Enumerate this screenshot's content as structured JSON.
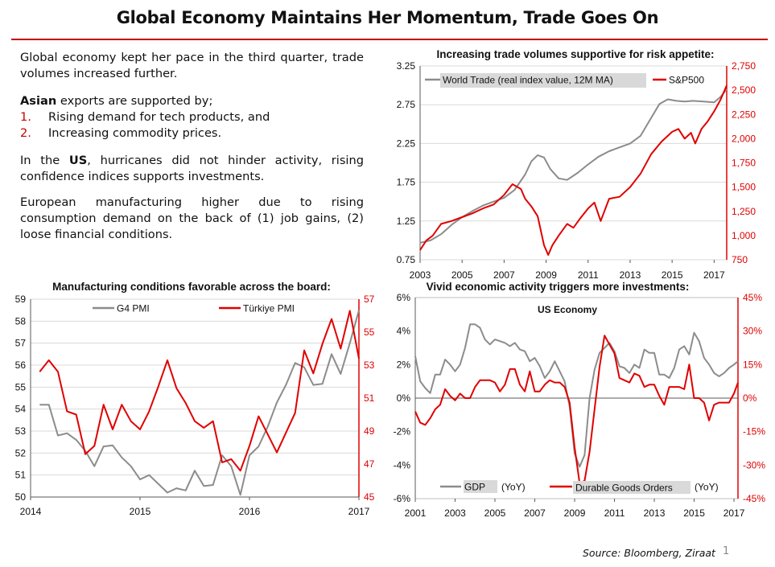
{
  "page": {
    "title": "Global Economy Maintains Her Momentum, Trade Goes On",
    "p1": "Global economy kept her pace in the third quarter, trade volumes increased further.",
    "p2_bold": "Asian",
    "p2_rest": " exports are supported by;",
    "list": [
      {
        "num": "1.",
        "text": "Rising demand for tech products, and"
      },
      {
        "num": "2.",
        "text": "Increasing commodity prices."
      }
    ],
    "p3_pre": "In the ",
    "p3_bold": "US",
    "p3_post": ", hurricanes did not hinder activity, rising confidence indices supports investments.",
    "p4": "European manufacturing higher due to rising consumption demand on the back of (1) job gains, (2) loose financial conditions.",
    "source": "Source: Bloomberg, Ziraat",
    "page_number": "1"
  },
  "colors": {
    "accent": "#c00000",
    "red_series": "#e00000",
    "gray_series": "#8c8c8c"
  },
  "chart_data": [
    {
      "id": "trade",
      "type": "line",
      "title": "Increasing trade volumes supportive for risk appetite:",
      "x_ticks": [
        "2003",
        "2005",
        "2007",
        "2009",
        "2011",
        "2013",
        "2015",
        "2017"
      ],
      "xlim": [
        2003,
        2017.6
      ],
      "y_left": {
        "lim": [
          0.75,
          3.25
        ],
        "ticks": [
          "0.75",
          "1.25",
          "1.75",
          "2.25",
          "2.75",
          "3.25"
        ]
      },
      "y_right": {
        "lim": [
          750,
          2750
        ],
        "ticks": [
          "750",
          "1,000",
          "1,250",
          "1,500",
          "1,750",
          "2,000",
          "2,250",
          "2,500",
          "2,750"
        ]
      },
      "series": [
        {
          "name": "World Trade (real index value, 12M MA)",
          "axis": "left",
          "color": "#8c8c8c",
          "x": [
            2003,
            2003.5,
            2004,
            2004.5,
            2005,
            2005.5,
            2006,
            2006.5,
            2007,
            2007.5,
            2008,
            2008.3,
            2008.6,
            2008.9,
            2009.2,
            2009.6,
            2010,
            2010.5,
            2011,
            2011.5,
            2012,
            2012.5,
            2013,
            2013.5,
            2014,
            2014.4,
            2014.8,
            2015.2,
            2015.6,
            2016,
            2016.5,
            2017,
            2017.3,
            2017.6
          ],
          "y": [
            0.97,
            1.0,
            1.08,
            1.2,
            1.3,
            1.38,
            1.45,
            1.5,
            1.55,
            1.65,
            1.85,
            2.02,
            2.1,
            2.07,
            1.92,
            1.8,
            1.78,
            1.87,
            1.98,
            2.08,
            2.15,
            2.2,
            2.25,
            2.35,
            2.58,
            2.76,
            2.82,
            2.8,
            2.79,
            2.8,
            2.79,
            2.78,
            2.85,
            2.95
          ]
        },
        {
          "name": "S&P500",
          "axis": "right",
          "color": "#e00000",
          "x": [
            2003,
            2003.3,
            2003.6,
            2004,
            2004.5,
            2005,
            2005.5,
            2006,
            2006.5,
            2007,
            2007.4,
            2007.8,
            2008,
            2008.3,
            2008.6,
            2008.9,
            2009.1,
            2009.3,
            2009.6,
            2010,
            2010.3,
            2010.6,
            2011,
            2011.3,
            2011.6,
            2012,
            2012.5,
            2013,
            2013.5,
            2014,
            2014.5,
            2015,
            2015.3,
            2015.6,
            2015.9,
            2016.1,
            2016.4,
            2016.7,
            2017,
            2017.3,
            2017.6
          ],
          "y": [
            850,
            950,
            1000,
            1120,
            1150,
            1190,
            1230,
            1280,
            1320,
            1420,
            1530,
            1480,
            1380,
            1300,
            1200,
            900,
            800,
            900,
            1000,
            1120,
            1080,
            1170,
            1280,
            1340,
            1150,
            1380,
            1400,
            1500,
            1640,
            1840,
            1970,
            2070,
            2100,
            2000,
            2060,
            1950,
            2100,
            2180,
            2280,
            2400,
            2550
          ]
        }
      ]
    },
    {
      "id": "pmi",
      "type": "line",
      "title": "Manufacturing conditions favorable across the board:",
      "x_ticks": [
        "2014",
        "2015",
        "2016",
        "2017"
      ],
      "xlim": [
        2014,
        2017
      ],
      "y_left": {
        "lim": [
          50,
          59
        ],
        "ticks": [
          "50",
          "51",
          "52",
          "53",
          "54",
          "55",
          "56",
          "57",
          "58",
          "59"
        ]
      },
      "y_right": {
        "lim": [
          45,
          57
        ],
        "ticks": [
          "45",
          "47",
          "49",
          "51",
          "53",
          "55",
          "57"
        ]
      },
      "series": [
        {
          "name": "G4 PMI",
          "axis": "left",
          "color": "#8c8c8c",
          "x": [
            2014.083,
            2014.167,
            2014.25,
            2014.333,
            2014.417,
            2014.5,
            2014.583,
            2014.667,
            2014.75,
            2014.833,
            2014.917,
            2015.0,
            2015.083,
            2015.167,
            2015.25,
            2015.333,
            2015.417,
            2015.5,
            2015.583,
            2015.667,
            2015.75,
            2015.833,
            2015.917,
            2016.0,
            2016.083,
            2016.167,
            2016.25,
            2016.333,
            2016.417,
            2016.5,
            2016.583,
            2016.667,
            2016.75,
            2016.833,
            2016.917,
            2017.0
          ],
          "y": [
            54.2,
            54.2,
            52.8,
            52.9,
            52.6,
            52.1,
            51.4,
            52.3,
            52.35,
            51.8,
            51.4,
            50.8,
            51.0,
            50.6,
            50.2,
            50.4,
            50.3,
            51.2,
            50.5,
            50.55,
            51.9,
            51.4,
            50.1,
            51.9,
            52.3,
            53.2,
            54.3,
            55.1,
            56.1,
            55.9,
            55.1,
            55.15,
            56.5,
            55.6,
            57.0,
            58.5
          ]
        },
        {
          "name": "Türkiye PMI",
          "axis": "right",
          "color": "#e00000",
          "x": [
            2014.083,
            2014.167,
            2014.25,
            2014.333,
            2014.417,
            2014.5,
            2014.583,
            2014.667,
            2014.75,
            2014.833,
            2014.917,
            2015.0,
            2015.083,
            2015.167,
            2015.25,
            2015.333,
            2015.417,
            2015.5,
            2015.583,
            2015.667,
            2015.75,
            2015.833,
            2015.917,
            2016.0,
            2016.083,
            2016.167,
            2016.25,
            2016.333,
            2016.417,
            2016.5,
            2016.583,
            2016.667,
            2016.75,
            2016.833,
            2016.917,
            2017.0
          ],
          "y": [
            52.6,
            53.3,
            52.6,
            50.2,
            50.0,
            47.6,
            48.1,
            50.6,
            49.1,
            50.6,
            49.6,
            49.1,
            50.2,
            51.7,
            53.3,
            51.6,
            50.7,
            49.6,
            49.2,
            49.6,
            47.1,
            47.3,
            46.6,
            48.1,
            49.9,
            48.8,
            47.7,
            48.9,
            50.1,
            53.9,
            52.5,
            54.3,
            55.8,
            54.0,
            56.3,
            53.4
          ]
        }
      ]
    },
    {
      "id": "us",
      "type": "line",
      "title": "Vivid economic activity triggers more investments:",
      "subtitle": "US Economy",
      "x_ticks": [
        "2001",
        "2003",
        "2005",
        "2007",
        "2009",
        "2011",
        "2013",
        "2015",
        "2017"
      ],
      "xlim": [
        2001,
        2017.2
      ],
      "y_left": {
        "lim": [
          -6,
          6
        ],
        "ticks": [
          "-6%",
          "-4%",
          "-2%",
          "0%",
          "2%",
          "4%",
          "6%"
        ]
      },
      "y_right": {
        "lim": [
          -45,
          45
        ],
        "ticks": [
          "-45%",
          "-30%",
          "-15%",
          "0%",
          "15%",
          "30%",
          "45%"
        ]
      },
      "series": [
        {
          "name": "GDP",
          "axis": "left",
          "color": "#8c8c8c",
          "label_suffix": "(YoY)",
          "x": [
            2001,
            2001.25,
            2001.5,
            2001.75,
            2002,
            2002.25,
            2002.5,
            2002.75,
            2003,
            2003.25,
            2003.5,
            2003.75,
            2004,
            2004.25,
            2004.5,
            2004.75,
            2005,
            2005.25,
            2005.5,
            2005.75,
            2006,
            2006.25,
            2006.5,
            2006.75,
            2007,
            2007.25,
            2007.5,
            2007.75,
            2008,
            2008.25,
            2008.5,
            2008.75,
            2009,
            2009.25,
            2009.5,
            2009.75,
            2010,
            2010.25,
            2010.5,
            2010.75,
            2011,
            2011.25,
            2011.5,
            2011.75,
            2012,
            2012.25,
            2012.5,
            2012.75,
            2013,
            2013.25,
            2013.5,
            2013.75,
            2014,
            2014.25,
            2014.5,
            2014.75,
            2015,
            2015.25,
            2015.5,
            2015.75,
            2016,
            2016.25,
            2016.5,
            2016.75,
            2017,
            2017.2
          ],
          "y": [
            2.5,
            1.0,
            0.6,
            0.3,
            1.4,
            1.4,
            2.3,
            2.0,
            1.6,
            2.0,
            3.0,
            4.4,
            4.4,
            4.2,
            3.5,
            3.2,
            3.5,
            3.4,
            3.3,
            3.1,
            3.3,
            2.9,
            2.8,
            2.2,
            2.4,
            1.9,
            1.2,
            1.6,
            2.2,
            1.6,
            1.0,
            -0.5,
            -3.3,
            -4.1,
            -3.4,
            0.0,
            1.7,
            2.7,
            3.0,
            3.3,
            2.8,
            1.9,
            1.8,
            1.5,
            2.0,
            1.8,
            2.9,
            2.7,
            2.7,
            1.4,
            1.4,
            1.2,
            1.8,
            2.9,
            3.1,
            2.6,
            3.9,
            3.4,
            2.4,
            2.0,
            1.5,
            1.3,
            1.5,
            1.8,
            2.0,
            2.2
          ]
        },
        {
          "name": "Durable Goods Orders",
          "axis": "right",
          "color": "#e00000",
          "label_suffix": "(YoY)",
          "x": [
            2001,
            2001.25,
            2001.5,
            2001.75,
            2002,
            2002.25,
            2002.5,
            2002.75,
            2003,
            2003.25,
            2003.5,
            2003.75,
            2004,
            2004.25,
            2004.5,
            2004.75,
            2005,
            2005.25,
            2005.5,
            2005.75,
            2006,
            2006.25,
            2006.5,
            2006.75,
            2007,
            2007.25,
            2007.5,
            2007.75,
            2008,
            2008.25,
            2008.5,
            2008.75,
            2009,
            2009.25,
            2009.5,
            2009.75,
            2010,
            2010.25,
            2010.5,
            2010.75,
            2011,
            2011.25,
            2011.5,
            2011.75,
            2012,
            2012.25,
            2012.5,
            2012.75,
            2013,
            2013.25,
            2013.5,
            2013.75,
            2014,
            2014.25,
            2014.5,
            2014.75,
            2015,
            2015.25,
            2015.5,
            2015.75,
            2016,
            2016.25,
            2016.5,
            2016.75,
            2017,
            2017.2
          ],
          "y": [
            -6,
            -11,
            -12,
            -9,
            -5,
            -3,
            4,
            1,
            -1,
            2,
            0,
            0,
            5,
            8,
            8,
            8,
            7,
            3,
            6,
            13,
            13,
            6,
            3,
            12,
            3,
            3,
            6,
            8,
            7,
            7,
            5,
            -2,
            -22,
            -38,
            -37,
            -24,
            -5,
            14,
            28,
            24,
            20,
            9,
            8,
            7,
            11,
            10,
            5,
            6,
            6,
            1,
            -3,
            5,
            5,
            5,
            4,
            15,
            0,
            0,
            -2,
            -10,
            -3,
            -2,
            -2,
            -2,
            2,
            7
          ]
        }
      ]
    }
  ]
}
